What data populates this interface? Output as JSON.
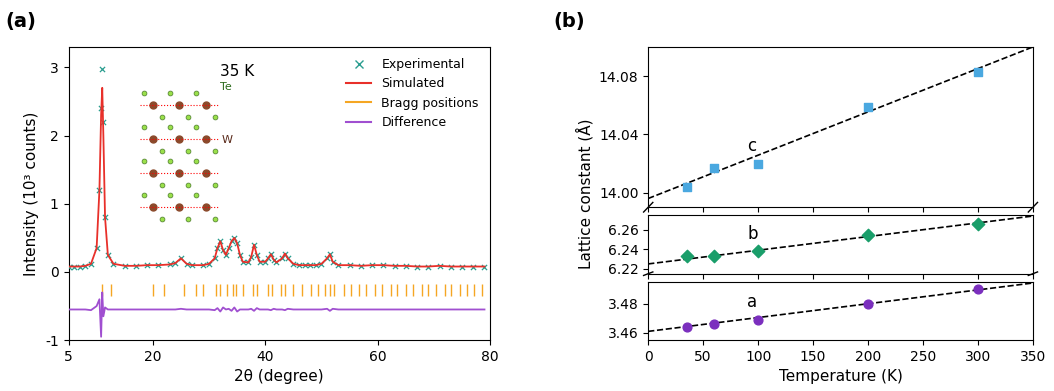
{
  "chart_data": [
    {
      "type": "scatter",
      "xlabel": "2θ (degree)",
      "ylabel": "Intensity (10³ counts)",
      "xlim": [
        5,
        80
      ],
      "xticks": [
        5,
        20,
        40,
        60,
        80
      ],
      "ylim": [
        -1,
        3.3
      ],
      "yticks": [
        -1,
        0,
        1,
        2,
        3
      ],
      "legend": "upper right",
      "annotations": [
        "(a)",
        "35 K",
        "Te",
        "W"
      ],
      "x": [
        5,
        6,
        7,
        8,
        9,
        10,
        10.5,
        10.8,
        11.0,
        11.2,
        11.5,
        12,
        13,
        15,
        17,
        19,
        21,
        23,
        24,
        25,
        26,
        27,
        29,
        30,
        31,
        31.5,
        32,
        32.5,
        33,
        33.5,
        34,
        34.5,
        35,
        35.5,
        36,
        37,
        37.5,
        38,
        38.5,
        39,
        40,
        40.5,
        41,
        41.5,
        42,
        43,
        43.5,
        44,
        45,
        46,
        47,
        48,
        49,
        50,
        51,
        51.5,
        52,
        53,
        55,
        57,
        59,
        61,
        63,
        65,
        67,
        69,
        71,
        73,
        75,
        77,
        79
      ],
      "series": [
        {
          "name": "Experimental",
          "type": "scatter",
          "marker": "x",
          "color": "#2a9d8f",
          "values": [
            0.08,
            0.08,
            0.08,
            0.09,
            0.12,
            0.35,
            1.2,
            2.4,
            2.98,
            2.2,
            0.8,
            0.25,
            0.12,
            0.09,
            0.09,
            0.1,
            0.1,
            0.11,
            0.13,
            0.2,
            0.12,
            0.1,
            0.1,
            0.12,
            0.2,
            0.35,
            0.45,
            0.32,
            0.25,
            0.35,
            0.45,
            0.5,
            0.42,
            0.25,
            0.15,
            0.14,
            0.22,
            0.4,
            0.25,
            0.15,
            0.15,
            0.2,
            0.26,
            0.18,
            0.14,
            0.2,
            0.27,
            0.2,
            0.12,
            0.1,
            0.1,
            0.1,
            0.1,
            0.12,
            0.2,
            0.26,
            0.15,
            0.1,
            0.1,
            0.09,
            0.1,
            0.1,
            0.09,
            0.09,
            0.08,
            0.08,
            0.09,
            0.08,
            0.08,
            0.08,
            0.08
          ]
        },
        {
          "name": "Simulated",
          "type": "line",
          "color": "#e8302a",
          "values": [
            0.08,
            0.08,
            0.08,
            0.09,
            0.12,
            0.35,
            1.2,
            2.3,
            2.7,
            2.0,
            0.8,
            0.25,
            0.12,
            0.09,
            0.09,
            0.1,
            0.1,
            0.11,
            0.13,
            0.2,
            0.12,
            0.1,
            0.1,
            0.12,
            0.2,
            0.35,
            0.45,
            0.32,
            0.25,
            0.35,
            0.45,
            0.5,
            0.42,
            0.25,
            0.15,
            0.14,
            0.22,
            0.4,
            0.25,
            0.15,
            0.15,
            0.2,
            0.26,
            0.18,
            0.14,
            0.2,
            0.27,
            0.2,
            0.12,
            0.1,
            0.1,
            0.1,
            0.1,
            0.12,
            0.2,
            0.26,
            0.15,
            0.1,
            0.1,
            0.09,
            0.1,
            0.1,
            0.09,
            0.09,
            0.08,
            0.08,
            0.09,
            0.08,
            0.08,
            0.08,
            0.08
          ]
        },
        {
          "name": "Bragg positions",
          "type": "ticks",
          "color": "#f5a623",
          "positions": [
            10.9,
            12.5,
            20.0,
            21.9,
            25.6,
            27.6,
            28.9,
            31.3,
            32.0,
            33.2,
            34.3,
            34.8,
            36.0,
            37.9,
            38.5,
            40.5,
            41.2,
            42.8,
            43.6,
            45.0,
            46.5,
            48.1,
            49.3,
            50.6,
            51.5,
            52.3,
            54.0,
            55.2,
            56.7,
            58.0,
            59.5,
            60.8,
            62.3,
            63.5,
            65.0,
            66.2,
            67.8,
            69.0,
            70.4,
            71.9,
            73.0,
            74.6,
            75.8,
            77.2,
            78.5
          ]
        },
        {
          "name": "Difference",
          "type": "line",
          "color": "#a04fd0",
          "values": [
            -0.55,
            -0.55,
            -0.55,
            -0.55,
            -0.56,
            -0.5,
            -0.4,
            -0.95,
            -0.3,
            -0.65,
            -0.52,
            -0.55,
            -0.55,
            -0.55,
            -0.55,
            -0.55,
            -0.55,
            -0.55,
            -0.55,
            -0.54,
            -0.55,
            -0.55,
            -0.55,
            -0.55,
            -0.56,
            -0.53,
            -0.58,
            -0.52,
            -0.55,
            -0.54,
            -0.57,
            -0.52,
            -0.58,
            -0.55,
            -0.55,
            -0.55,
            -0.54,
            -0.57,
            -0.53,
            -0.55,
            -0.55,
            -0.55,
            -0.56,
            -0.54,
            -0.55,
            -0.55,
            -0.56,
            -0.54,
            -0.55,
            -0.55,
            -0.55,
            -0.55,
            -0.55,
            -0.55,
            -0.54,
            -0.57,
            -0.54,
            -0.55,
            -0.55,
            -0.55,
            -0.55,
            -0.55,
            -0.55,
            -0.55,
            -0.55,
            -0.55,
            -0.55,
            -0.55,
            -0.55,
            -0.55,
            -0.55
          ]
        }
      ]
    },
    {
      "type": "scatter",
      "ylabel": "Lattice constant (Å)",
      "annotations": [
        "(b)"
      ],
      "xlim": [
        0,
        350
      ],
      "xticks": [
        0,
        50,
        100,
        150,
        200,
        250,
        300,
        350
      ],
      "ylim": [
        13.99,
        14.1
      ],
      "yticks": [
        {
          "value": 14.0,
          "label": "14.00"
        },
        14.04,
        14.08
      ],
      "series": [
        {
          "name": "c",
          "type": "scatter",
          "marker": "square",
          "color": "#4aa8e0",
          "x": [
            35,
            60,
            100,
            200,
            300
          ],
          "values": [
            14.004,
            14.017,
            14.02,
            14.059,
            14.083
          ]
        },
        {
          "type": "line",
          "line_style": "dashed",
          "color": "#000000",
          "x": [
            0,
            350
          ],
          "values": [
            13.996,
            14.1
          ]
        }
      ]
    },
    {
      "type": "scatter",
      "xlim": [
        0,
        350
      ],
      "xticks": [
        0,
        50,
        100,
        150,
        200,
        250,
        300,
        350
      ],
      "ylim": [
        6.215,
        6.275
      ],
      "yticks": [
        6.22,
        6.24,
        6.26
      ],
      "series": [
        {
          "name": "b",
          "type": "scatter",
          "marker": "diamond",
          "color": "#1a9e6a",
          "x": [
            35,
            60,
            100,
            200,
            300
          ],
          "values": [
            6.233,
            6.233,
            6.238,
            6.255,
            6.266
          ]
        },
        {
          "type": "line",
          "line_style": "dashed",
          "color": "#000000",
          "x": [
            0,
            350
          ],
          "values": [
            6.225,
            6.274
          ]
        }
      ]
    },
    {
      "type": "scatter",
      "xlabel": "Temperature (K)",
      "xlim": [
        0,
        350
      ],
      "xticks": [
        0,
        50,
        100,
        150,
        200,
        250,
        300,
        350
      ],
      "ylim": [
        3.455,
        3.495
      ],
      "yticks": [
        3.46,
        3.48
      ],
      "series": [
        {
          "name": "a",
          "type": "scatter",
          "marker": "circle",
          "color": "#7b2fbe",
          "x": [
            35,
            60,
            100,
            200,
            300
          ],
          "values": [
            3.464,
            3.466,
            3.469,
            3.48,
            3.49
          ]
        },
        {
          "type": "line",
          "line_style": "dashed",
          "color": "#000000",
          "x": [
            0,
            350
          ],
          "values": [
            3.461,
            3.494
          ]
        }
      ]
    }
  ]
}
